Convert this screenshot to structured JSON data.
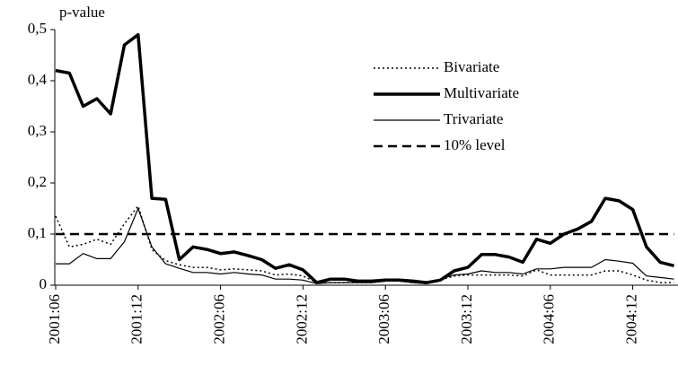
{
  "chart_data": {
    "type": "line",
    "y_label": "p-value",
    "categories": [
      "2001:06",
      null,
      null,
      null,
      null,
      null,
      "2001:12",
      null,
      null,
      null,
      null,
      null,
      "2002:06",
      null,
      null,
      null,
      null,
      null,
      "2002:12",
      null,
      null,
      null,
      null,
      null,
      "2003:06",
      null,
      null,
      null,
      null,
      null,
      "2003:12",
      null,
      null,
      null,
      null,
      null,
      "2004:06",
      null,
      null,
      null,
      null,
      null,
      "2004:12",
      null,
      null,
      null
    ],
    "ylim": [
      0,
      0.5
    ],
    "yticks": [
      0,
      {
        "value": 0.1,
        "label": "0,1"
      },
      {
        "value": 0.2,
        "label": "0,2"
      },
      {
        "value": 0.3,
        "label": "0,3"
      },
      {
        "value": 0.4,
        "label": "0,4"
      },
      {
        "value": 0.5,
        "label": "0,5"
      }
    ],
    "series": [
      {
        "name": "Bivariate",
        "color": "#000000",
        "style": "dotted",
        "width": 1.5,
        "values": [
          0.135,
          0.075,
          0.08,
          0.09,
          0.08,
          0.12,
          0.155,
          0.07,
          0.048,
          0.04,
          0.035,
          0.035,
          0.03,
          0.032,
          0.03,
          0.028,
          0.02,
          0.022,
          0.018,
          0.005,
          0.005,
          0.005,
          0.005,
          0.005,
          0.008,
          0.008,
          0.005,
          0.003,
          0.01,
          0.018,
          0.02,
          0.02,
          0.02,
          0.02,
          0.018,
          0.03,
          0.02,
          0.02,
          0.02,
          0.02,
          0.028,
          0.028,
          0.02,
          0.01,
          0.005,
          0.005
        ]
      },
      {
        "name": "Multivariate",
        "color": "#000000",
        "style": "solid",
        "width": 3.5,
        "values": [
          0.42,
          0.415,
          0.35,
          0.365,
          0.335,
          0.47,
          0.49,
          0.17,
          0.168,
          0.05,
          0.075,
          0.07,
          0.062,
          0.065,
          0.058,
          0.05,
          0.033,
          0.04,
          0.03,
          0.005,
          0.012,
          0.012,
          0.008,
          0.008,
          0.01,
          0.01,
          0.008,
          0.005,
          0.01,
          0.028,
          0.035,
          0.06,
          0.06,
          0.055,
          0.045,
          0.09,
          0.082,
          0.1,
          0.11,
          0.125,
          0.17,
          0.165,
          0.148,
          0.075,
          0.045,
          0.038
        ]
      },
      {
        "name": "Trivariate",
        "color": "#000000",
        "style": "solid",
        "width": 1.2,
        "values": [
          0.042,
          0.042,
          0.062,
          0.052,
          0.052,
          0.085,
          0.15,
          0.075,
          0.042,
          0.033,
          0.025,
          0.025,
          0.022,
          0.025,
          0.022,
          0.02,
          0.012,
          0.012,
          0.01,
          0.003,
          0.005,
          0.005,
          0.005,
          0.005,
          0.008,
          0.008,
          0.005,
          0.003,
          0.012,
          0.02,
          0.022,
          0.028,
          0.025,
          0.025,
          0.022,
          0.032,
          0.032,
          0.035,
          0.035,
          0.035,
          0.05,
          0.047,
          0.043,
          0.018,
          0.015,
          0.012
        ]
      },
      {
        "name": "10% level",
        "color": "#000000",
        "style": "dashed",
        "width": 2.5,
        "values": [
          0.1,
          0.1,
          0.1,
          0.1,
          0.1,
          0.1,
          0.1,
          0.1,
          0.1,
          0.1,
          0.1,
          0.1,
          0.1,
          0.1,
          0.1,
          0.1,
          0.1,
          0.1,
          0.1,
          0.1,
          0.1,
          0.1,
          0.1,
          0.1,
          0.1,
          0.1,
          0.1,
          0.1,
          0.1,
          0.1,
          0.1,
          0.1,
          0.1,
          0.1,
          0.1,
          0.1,
          0.1,
          0.1,
          0.1,
          0.1,
          0.1,
          0.1,
          0.1,
          0.1,
          0.1,
          0.1
        ]
      }
    ]
  }
}
